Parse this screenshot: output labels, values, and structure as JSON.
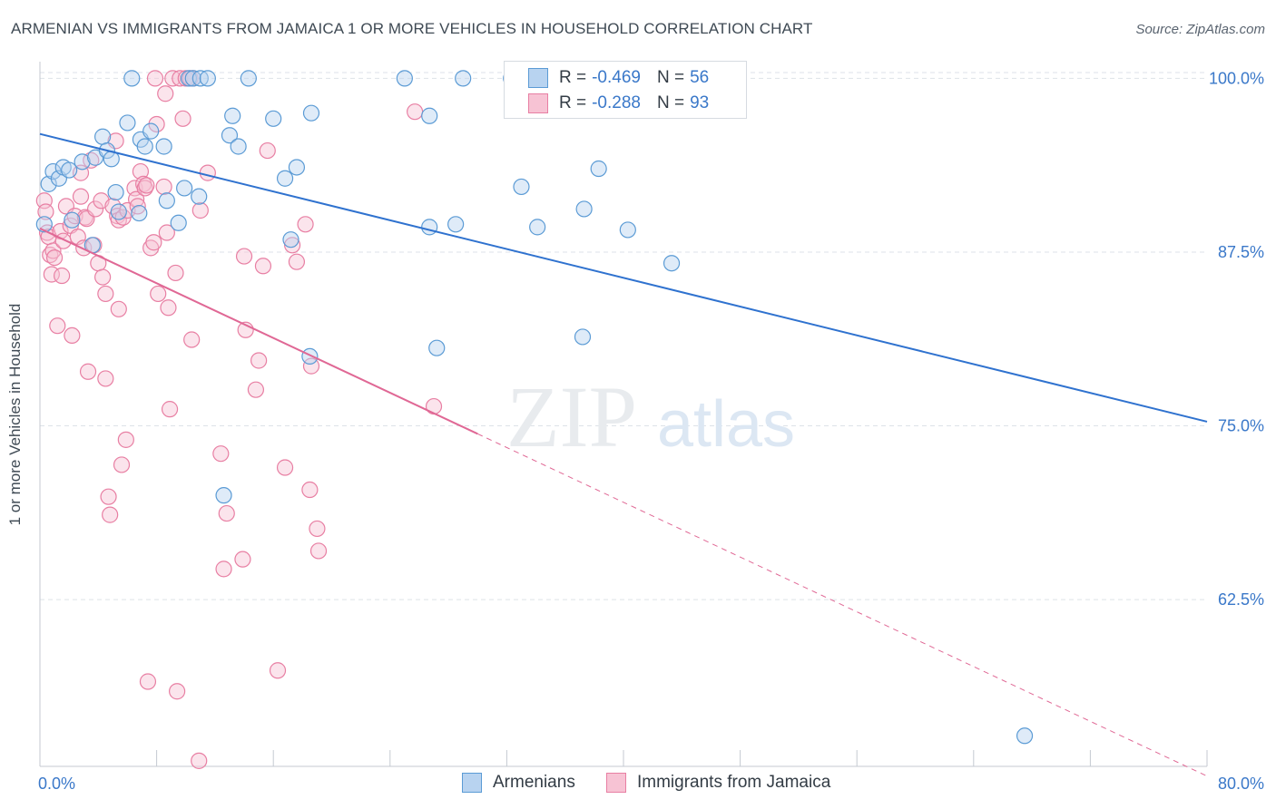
{
  "title": "ARMENIAN VS IMMIGRANTS FROM JAMAICA 1 OR MORE VEHICLES IN HOUSEHOLD CORRELATION CHART",
  "source": "Source: ZipAtlas.com",
  "watermark": {
    "zip": "ZIP",
    "atlas": "atlas"
  },
  "colors": {
    "blue": "#5b9bd5",
    "blue_fill": "#b8d3f0",
    "blue_line": "#2f72cf",
    "pink": "#e87fa3",
    "pink_fill": "#f7c3d4",
    "pink_line": "#e06895",
    "tick_label": "#3a78c9",
    "grid": "#dde2e8"
  },
  "legend": {
    "rows": [
      {
        "r_label": "R =",
        "r_value": "-0.469",
        "n_label": "N =",
        "n_value": "56"
      },
      {
        "r_label": "R =",
        "r_value": "-0.288",
        "n_label": "N =",
        "n_value": "93"
      }
    ]
  },
  "bottom_legend": {
    "armenians": "Armenians",
    "jamaica": "Immigrants from Jamaica"
  },
  "chart_data": {
    "type": "scatter",
    "title": "ARMENIAN VS IMMIGRANTS FROM JAMAICA 1 OR MORE VEHICLES IN HOUSEHOLD CORRELATION CHART",
    "xlabel": "",
    "ylabel": "1 or more Vehicles in Household",
    "xlim": [
      0,
      80
    ],
    "ylim": [
      50.5,
      101.2
    ],
    "x_tick_labels": [
      "0.0%",
      "80.0%"
    ],
    "y_ticks": [
      62.5,
      75.0,
      87.5,
      100.0
    ],
    "y_tick_labels": [
      "62.5%",
      "75.0%",
      "87.5%",
      "100.0%"
    ],
    "grid": true,
    "legend_position": "top-center",
    "series": [
      {
        "name": "Armenians",
        "r": -0.469,
        "n": 56,
        "trend": {
          "x": [
            0,
            80
          ],
          "y": [
            96.0,
            75.3
          ],
          "dashed_after": null
        },
        "points": [
          [
            0.3,
            89.5
          ],
          [
            0.6,
            92.4
          ],
          [
            0.9,
            93.3
          ],
          [
            1.3,
            92.8
          ],
          [
            1.6,
            93.6
          ],
          [
            2.0,
            93.4
          ],
          [
            2.2,
            89.8
          ],
          [
            2.9,
            94.0
          ],
          [
            3.6,
            88.0
          ],
          [
            3.8,
            94.3
          ],
          [
            4.3,
            95.8
          ],
          [
            4.6,
            94.8
          ],
          [
            4.9,
            94.2
          ],
          [
            5.2,
            91.8
          ],
          [
            5.4,
            90.4
          ],
          [
            6.0,
            96.8
          ],
          [
            6.3,
            100.0
          ],
          [
            6.8,
            90.3
          ],
          [
            6.9,
            95.6
          ],
          [
            7.2,
            95.1
          ],
          [
            7.6,
            96.2
          ],
          [
            8.5,
            95.1
          ],
          [
            8.7,
            91.2
          ],
          [
            9.5,
            89.6
          ],
          [
            9.9,
            92.1
          ],
          [
            10.2,
            100.0
          ],
          [
            10.5,
            100.0
          ],
          [
            11.0,
            100.0
          ],
          [
            10.9,
            91.5
          ],
          [
            11.5,
            100.0
          ],
          [
            12.6,
            70.0
          ],
          [
            13.0,
            95.9
          ],
          [
            13.2,
            97.3
          ],
          [
            13.6,
            95.1
          ],
          [
            14.3,
            100.0
          ],
          [
            16.0,
            97.1
          ],
          [
            16.8,
            92.8
          ],
          [
            17.2,
            88.4
          ],
          [
            17.6,
            93.6
          ],
          [
            18.5,
            80.0
          ],
          [
            18.6,
            97.5
          ],
          [
            25.0,
            100.0
          ],
          [
            26.7,
            89.3
          ],
          [
            26.7,
            97.3
          ],
          [
            27.2,
            80.6
          ],
          [
            28.5,
            89.5
          ],
          [
            29.0,
            100.0
          ],
          [
            32.3,
            100.0
          ],
          [
            33.0,
            92.2
          ],
          [
            34.1,
            89.3
          ],
          [
            37.2,
            81.4
          ],
          [
            37.3,
            90.6
          ],
          [
            38.3,
            93.5
          ],
          [
            40.3,
            89.1
          ],
          [
            43.3,
            86.7
          ],
          [
            67.5,
            52.7
          ]
        ]
      },
      {
        "name": "Immigrants from Jamaica",
        "r": -0.288,
        "n": 93,
        "trend": {
          "x": [
            0,
            80
          ],
          "y": [
            89.2,
            49.8
          ],
          "dashed_after": 30.0
        },
        "points": [
          [
            0.3,
            91.2
          ],
          [
            0.4,
            90.4
          ],
          [
            0.5,
            88.9
          ],
          [
            0.6,
            88.6
          ],
          [
            0.7,
            87.3
          ],
          [
            0.8,
            85.9
          ],
          [
            0.9,
            87.6
          ],
          [
            1.0,
            87.1
          ],
          [
            1.2,
            82.2
          ],
          [
            1.4,
            89.0
          ],
          [
            1.5,
            85.8
          ],
          [
            1.6,
            88.3
          ],
          [
            1.8,
            90.8
          ],
          [
            2.1,
            89.4
          ],
          [
            2.2,
            81.5
          ],
          [
            2.4,
            90.1
          ],
          [
            2.6,
            88.6
          ],
          [
            2.8,
            91.5
          ],
          [
            2.8,
            93.2
          ],
          [
            3.0,
            87.8
          ],
          [
            3.1,
            90.0
          ],
          [
            3.2,
            89.9
          ],
          [
            3.3,
            78.9
          ],
          [
            3.5,
            94.1
          ],
          [
            3.7,
            88.0
          ],
          [
            3.8,
            90.6
          ],
          [
            4.0,
            86.7
          ],
          [
            4.2,
            91.2
          ],
          [
            4.3,
            85.7
          ],
          [
            4.5,
            84.5
          ],
          [
            4.5,
            78.4
          ],
          [
            4.7,
            69.9
          ],
          [
            4.8,
            68.6
          ],
          [
            5.0,
            90.8
          ],
          [
            5.2,
            95.5
          ],
          [
            5.3,
            90.1
          ],
          [
            5.4,
            89.8
          ],
          [
            5.4,
            83.4
          ],
          [
            5.6,
            72.2
          ],
          [
            5.7,
            90.0
          ],
          [
            5.9,
            74.0
          ],
          [
            6.0,
            90.5
          ],
          [
            6.5,
            92.1
          ],
          [
            6.6,
            91.3
          ],
          [
            6.7,
            90.8
          ],
          [
            6.9,
            93.3
          ],
          [
            7.1,
            92.4
          ],
          [
            7.2,
            92.1
          ],
          [
            7.3,
            92.3
          ],
          [
            7.4,
            56.6
          ],
          [
            7.6,
            87.8
          ],
          [
            7.8,
            88.2
          ],
          [
            7.9,
            100.0
          ],
          [
            8.0,
            96.7
          ],
          [
            8.1,
            84.5
          ],
          [
            8.5,
            92.2
          ],
          [
            8.6,
            98.9
          ],
          [
            8.7,
            88.9
          ],
          [
            8.8,
            83.5
          ],
          [
            8.9,
            76.2
          ],
          [
            9.1,
            100.0
          ],
          [
            9.4,
            55.9
          ],
          [
            9.6,
            100.0
          ],
          [
            9.8,
            97.1
          ],
          [
            10.0,
            100.0
          ],
          [
            10.3,
            100.0
          ],
          [
            10.4,
            81.2
          ],
          [
            10.5,
            100.0
          ],
          [
            10.9,
            50.9
          ],
          [
            11.0,
            90.5
          ],
          [
            11.5,
            93.2
          ],
          [
            12.4,
            73.0
          ],
          [
            12.6,
            64.7
          ],
          [
            12.8,
            68.7
          ],
          [
            13.9,
            65.4
          ],
          [
            14.0,
            87.2
          ],
          [
            14.1,
            81.9
          ],
          [
            14.8,
            77.6
          ],
          [
            15.0,
            79.7
          ],
          [
            15.3,
            86.5
          ],
          [
            15.6,
            94.8
          ],
          [
            16.3,
            57.4
          ],
          [
            16.8,
            72.0
          ],
          [
            17.3,
            88.0
          ],
          [
            17.6,
            86.8
          ],
          [
            18.2,
            89.5
          ],
          [
            18.5,
            70.4
          ],
          [
            18.6,
            79.3
          ],
          [
            19.0,
            67.6
          ],
          [
            19.1,
            66.0
          ],
          [
            25.7,
            97.6
          ],
          [
            27.0,
            76.4
          ],
          [
            9.3,
            86.0
          ]
        ]
      }
    ]
  }
}
